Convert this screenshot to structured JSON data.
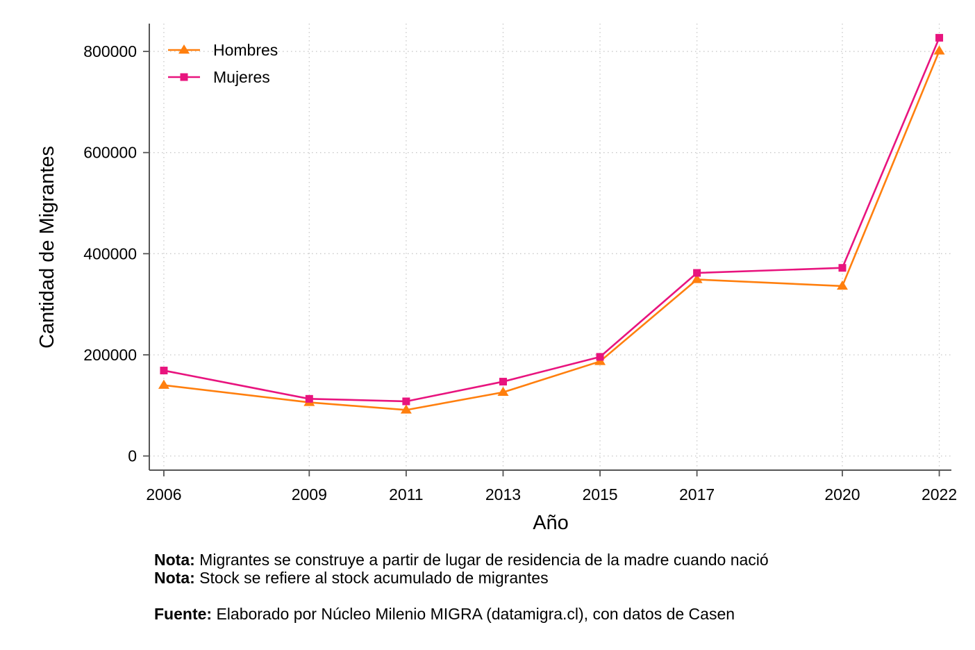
{
  "chart_data": {
    "type": "line",
    "title": "",
    "xlabel": "Año",
    "ylabel": "Cantidad de Migrantes",
    "x": [
      2006,
      2009,
      2011,
      2013,
      2015,
      2017,
      2020,
      2022
    ],
    "xticks": [
      "2006",
      "2009",
      "2011",
      "2013",
      "2015",
      "2017",
      "2020",
      "2022"
    ],
    "yticks": [
      "0",
      "200000",
      "400000",
      "600000",
      "800000"
    ],
    "ylim": [
      -28000,
      855000
    ],
    "xlim": [
      2005.7,
      2022.25
    ],
    "grid": true,
    "legend_position": "top-left",
    "series": [
      {
        "name": "Hombres",
        "color": "#ff7f0e",
        "marker": "triangle",
        "values": [
          140000,
          106000,
          91000,
          126000,
          187000,
          349000,
          336000,
          801000
        ]
      },
      {
        "name": "Mujeres",
        "color": "#e8147e",
        "marker": "square",
        "values": [
          169000,
          113000,
          108000,
          147000,
          196000,
          362000,
          372000,
          827000
        ]
      }
    ]
  },
  "notes": {
    "note1_label": "Nota:",
    "note1_text": " Migrantes se construye a partir de lugar de residencia de la madre cuando nació",
    "note2_label": "Nota:",
    "note2_text": " Stock se refiere al stock acumulado de migrantes",
    "source_label": "Fuente:",
    "source_text": " Elaborado por Núcleo Milenio MIGRA (datamigra.cl), con datos de Casen"
  }
}
